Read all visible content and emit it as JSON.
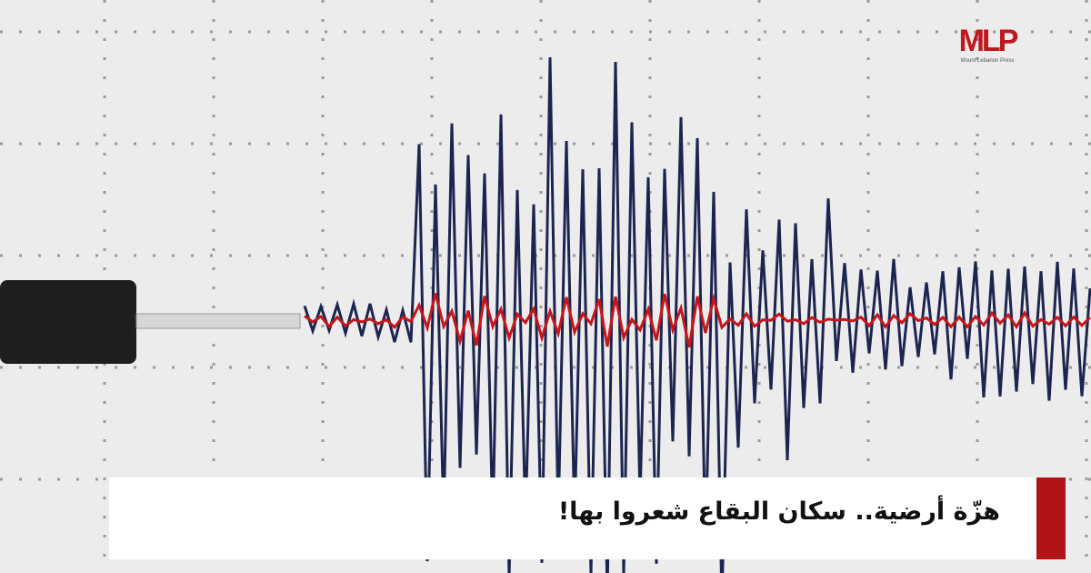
{
  "headline": "هزّة أرضية.. سكان البقاع شعروا بها!",
  "logo": {
    "mark": "MLP",
    "name": "Mount Lebanon Press"
  },
  "colors": {
    "accent": "#b01417",
    "trace_primary": "#1b2550",
    "trace_secondary": "#c4161c",
    "paper": "#ebebeb"
  },
  "image": {
    "subject": "seismograph-trace"
  }
}
